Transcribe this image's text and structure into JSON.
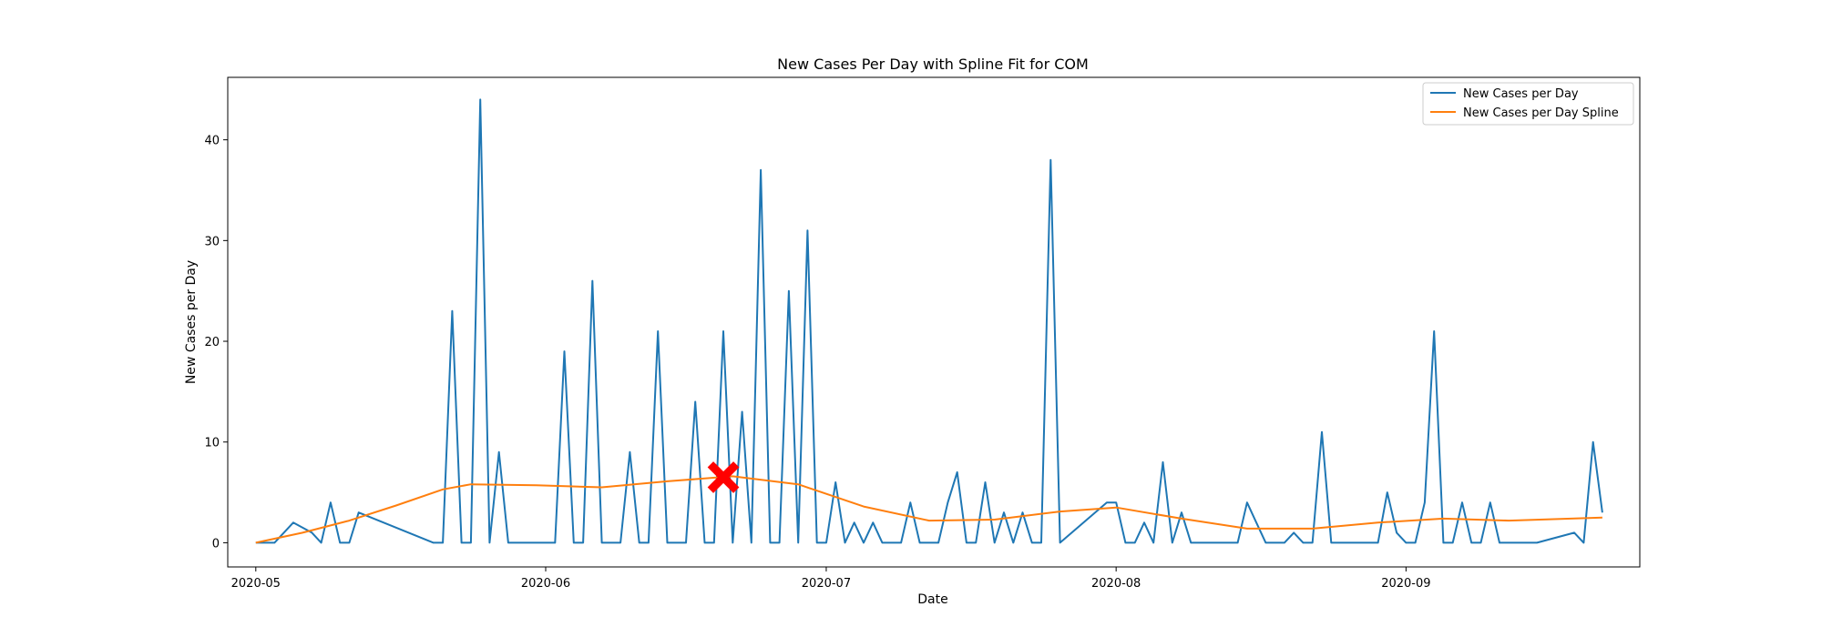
{
  "chart_data": {
    "type": "line",
    "title": "New Cases Per Day with Spline Fit for COM",
    "xlabel": "Date",
    "ylabel": "New Cases per Day",
    "x_range": [
      "2020-04-28",
      "2020-09-26"
    ],
    "ylim": [
      -2.4,
      46.2
    ],
    "x_ticks": [
      "2020-05",
      "2020-06",
      "2020-07",
      "2020-08",
      "2020-09"
    ],
    "y_ticks": [
      0,
      10,
      20,
      30,
      40
    ],
    "grid": false,
    "legend_position": "top-right",
    "colors": {
      "cases": "#1f77b4",
      "spline": "#ff7f0e",
      "marker": "#ff0000"
    },
    "series": [
      {
        "name": "New Cases per Day",
        "dates": [
          "2020-05-01",
          "2020-05-03",
          "2020-05-05",
          "2020-05-07",
          "2020-05-08",
          "2020-05-09",
          "2020-05-10",
          "2020-05-11",
          "2020-05-12",
          "2020-05-20",
          "2020-05-21",
          "2020-05-22",
          "2020-05-23",
          "2020-05-24",
          "2020-05-25",
          "2020-05-26",
          "2020-05-27",
          "2020-05-28",
          "2020-05-29",
          "2020-06-02",
          "2020-06-03",
          "2020-06-04",
          "2020-06-05",
          "2020-06-06",
          "2020-06-07",
          "2020-06-08",
          "2020-06-09",
          "2020-06-10",
          "2020-06-11",
          "2020-06-12",
          "2020-06-13",
          "2020-06-14",
          "2020-06-15",
          "2020-06-16",
          "2020-06-17",
          "2020-06-18",
          "2020-06-19",
          "2020-06-20",
          "2020-06-21",
          "2020-06-22",
          "2020-06-23",
          "2020-06-24",
          "2020-06-25",
          "2020-06-26",
          "2020-06-27",
          "2020-06-28",
          "2020-06-29",
          "2020-06-30",
          "2020-07-01",
          "2020-07-02",
          "2020-07-03",
          "2020-07-04",
          "2020-07-05",
          "2020-07-06",
          "2020-07-07",
          "2020-07-08",
          "2020-07-09",
          "2020-07-10",
          "2020-07-11",
          "2020-07-12",
          "2020-07-13",
          "2020-07-14",
          "2020-07-15",
          "2020-07-16",
          "2020-07-17",
          "2020-07-18",
          "2020-07-19",
          "2020-07-20",
          "2020-07-21",
          "2020-07-22",
          "2020-07-23",
          "2020-07-24",
          "2020-07-25",
          "2020-07-26",
          "2020-07-31",
          "2020-08-01",
          "2020-08-02",
          "2020-08-03",
          "2020-08-04",
          "2020-08-05",
          "2020-08-06",
          "2020-08-07",
          "2020-08-08",
          "2020-08-09",
          "2020-08-10",
          "2020-08-11",
          "2020-08-12",
          "2020-08-13",
          "2020-08-14",
          "2020-08-15",
          "2020-08-16",
          "2020-08-17",
          "2020-08-18",
          "2020-08-19",
          "2020-08-20",
          "2020-08-21",
          "2020-08-22",
          "2020-08-23",
          "2020-08-24",
          "2020-08-25",
          "2020-08-26",
          "2020-08-27",
          "2020-08-28",
          "2020-08-29",
          "2020-08-30",
          "2020-08-31",
          "2020-09-01",
          "2020-09-02",
          "2020-09-03",
          "2020-09-04",
          "2020-09-05",
          "2020-09-06",
          "2020-09-07",
          "2020-09-08",
          "2020-09-09",
          "2020-09-10",
          "2020-09-11",
          "2020-09-12",
          "2020-09-13",
          "2020-09-14",
          "2020-09-15",
          "2020-09-19",
          "2020-09-20",
          "2020-09-21",
          "2020-09-22"
        ],
        "values": [
          0,
          0,
          2,
          1,
          0,
          4,
          0,
          0,
          3,
          0,
          0,
          23,
          0,
          0,
          44,
          0,
          9,
          0,
          0,
          0,
          19,
          0,
          0,
          26,
          0,
          0,
          0,
          9,
          0,
          0,
          21,
          0,
          0,
          0,
          14,
          0,
          0,
          21,
          0,
          13,
          0,
          37,
          0,
          0,
          25,
          0,
          31,
          0,
          0,
          6,
          0,
          2,
          0,
          2,
          0,
          0,
          0,
          4,
          0,
          0,
          0,
          4,
          7,
          0,
          0,
          6,
          0,
          3,
          0,
          3,
          0,
          0,
          38,
          0,
          4,
          4,
          0,
          0,
          2,
          0,
          8,
          0,
          3,
          0,
          0,
          0,
          0,
          0,
          0,
          4,
          2,
          0,
          0,
          0,
          1,
          0,
          0,
          11,
          0,
          0,
          0,
          0,
          0,
          0,
          5,
          1,
          0,
          0,
          4,
          21,
          0,
          0,
          4,
          0,
          0,
          4,
          0,
          0,
          0,
          0,
          0,
          1,
          0,
          10,
          3
        ]
      },
      {
        "name": "New Cases per Day Spline",
        "dates": [
          "2020-05-01",
          "2020-05-06",
          "2020-05-11",
          "2020-05-16",
          "2020-05-21",
          "2020-05-24",
          "2020-05-31",
          "2020-06-07",
          "2020-06-14",
          "2020-06-21",
          "2020-06-28",
          "2020-07-05",
          "2020-07-12",
          "2020-07-19",
          "2020-07-26",
          "2020-08-01",
          "2020-08-08",
          "2020-08-15",
          "2020-08-22",
          "2020-08-29",
          "2020-09-05",
          "2020-09-12",
          "2020-09-22"
        ],
        "values": [
          0,
          1.0,
          2.2,
          3.7,
          5.3,
          5.8,
          5.7,
          5.5,
          6.1,
          6.6,
          5.8,
          3.6,
          2.2,
          2.3,
          3.1,
          3.5,
          2.4,
          1.4,
          1.4,
          2.0,
          2.4,
          2.2,
          2.5
        ]
      }
    ],
    "annotations": [
      {
        "type": "marker",
        "shape": "x",
        "date": "2020-06-20",
        "value": 6.5
      }
    ]
  }
}
